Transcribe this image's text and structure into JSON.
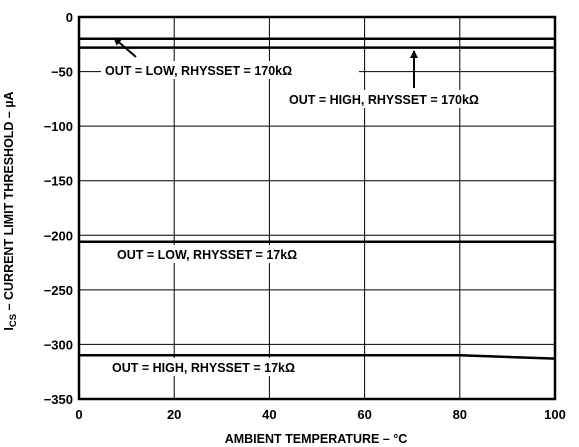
{
  "chart_data": {
    "type": "line",
    "title": "",
    "xlabel": "AMBIENT TEMPERATURE – °C",
    "ylabel": {
      "prefix": "I",
      "subscript": "CS",
      "rest": " – CURRENT LIMIT THRESHOLD – µA"
    },
    "xlim": [
      0,
      100
    ],
    "ylim": [
      -350,
      0
    ],
    "xticks": [
      0,
      20,
      40,
      60,
      80,
      100
    ],
    "yticks": [
      0,
      -50,
      -100,
      -150,
      -200,
      -250,
      -300,
      -350
    ],
    "grid": true,
    "series": [
      {
        "x": [
          0,
          100
        ],
        "y": [
          -20,
          -20
        ]
      },
      {
        "x": [
          0,
          100
        ],
        "y": [
          -28,
          -28
        ]
      },
      {
        "x": [
          0,
          100
        ],
        "y": [
          -206,
          -206
        ]
      },
      {
        "x": [
          0,
          80,
          100
        ],
        "y": [
          -310,
          -310,
          -313
        ]
      }
    ],
    "annotations": [
      {
        "text": "OUT = LOW, RHYSSET = 170kΩ"
      },
      {
        "text": "OUT = HIGH, RHYSSET = 170kΩ"
      },
      {
        "text": "OUT = LOW, RHYSSET = 17kΩ"
      },
      {
        "text": "OUT = HIGH, RHYSSET = 17kΩ"
      }
    ]
  }
}
